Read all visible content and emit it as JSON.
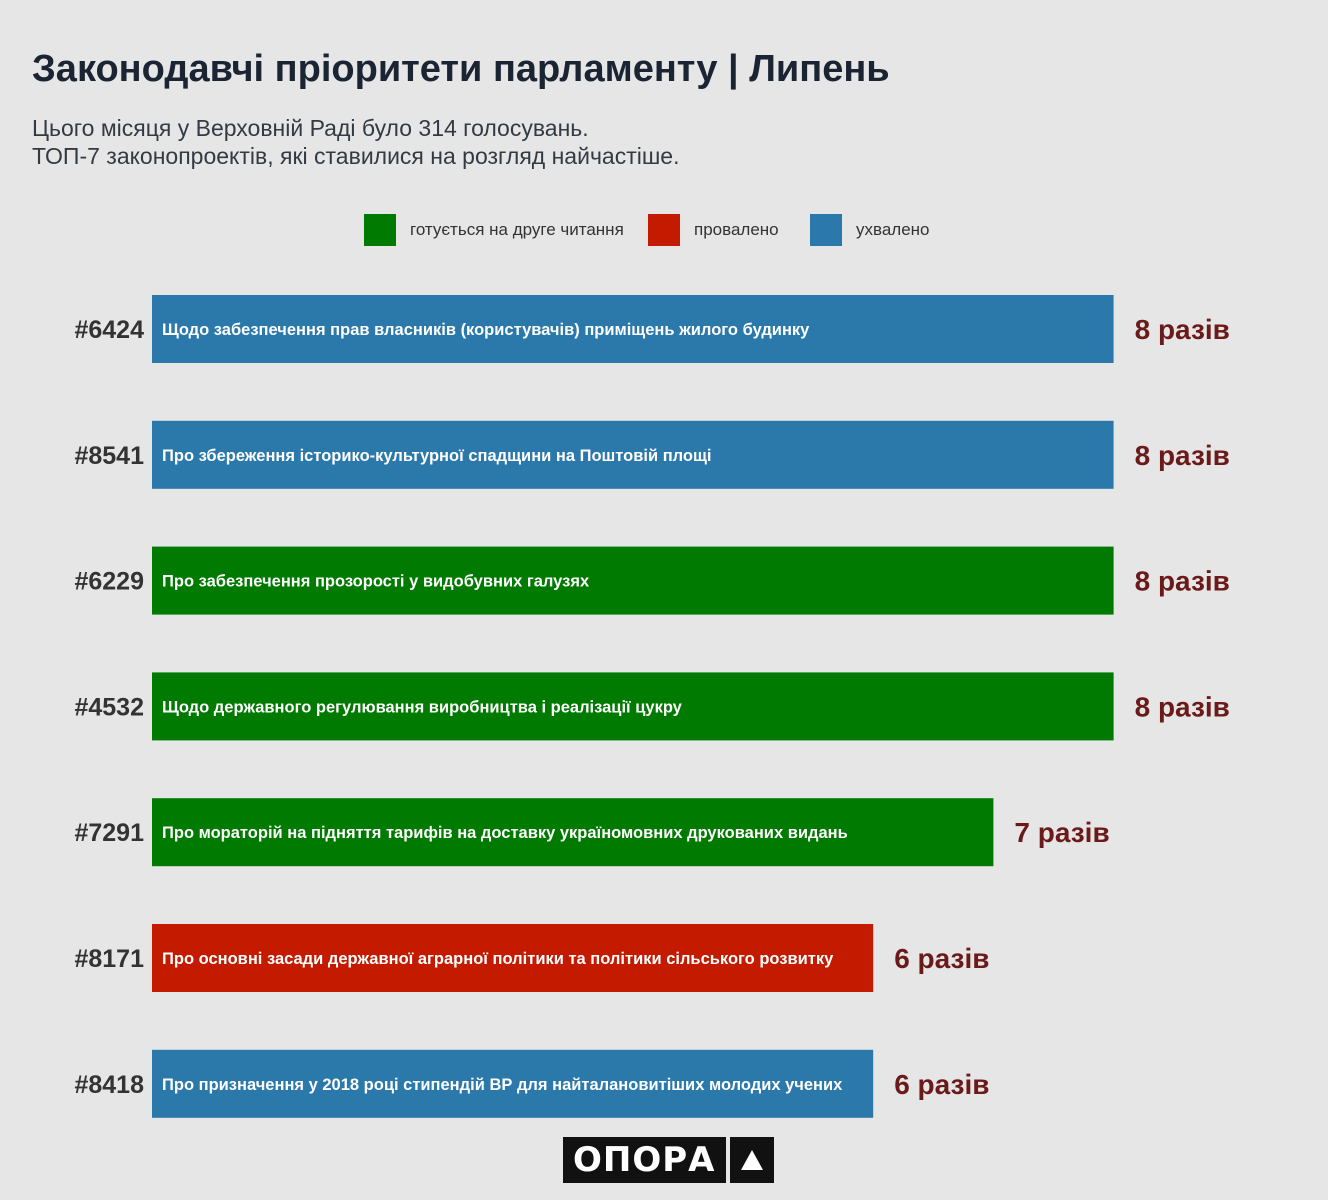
{
  "title": "Законодавчі пріоритети парламенту | Липень",
  "subtitle_line1": "Цього місяця у Верховній Раді було 314 голосувань.",
  "subtitle_line2": "ТОП-7 законопроектів, які ставилися на розгляд найчастіше.",
  "legend": [
    {
      "label": "готується на друге читання",
      "color": "#007a00"
    },
    {
      "label": "провалено",
      "color": "#c31a00"
    },
    {
      "label": "ухвалено",
      "color": "#2b78ab"
    }
  ],
  "colors": {
    "second_reading": "#007a00",
    "failed": "#c31a00",
    "approved": "#2b78ab",
    "value_text": "#6b1a1a",
    "id_text": "#333333"
  },
  "logo_text": "ОПОРА",
  "chart_data": {
    "type": "bar",
    "orientation": "horizontal",
    "value_suffix": "разів",
    "xlim": [
      0,
      8
    ],
    "bars": [
      {
        "id": "#6424",
        "label": "Щодо забезпечення прав власників (користувачів) приміщень жилого будинку",
        "value": 8,
        "value_label": "8 разів",
        "status": "ухвалено"
      },
      {
        "id": "#8541",
        "label": "Про збереження історико-культурної спадщини на Поштовій площі",
        "value": 8,
        "value_label": "8 разів",
        "status": "ухвалено"
      },
      {
        "id": "#6229",
        "label": "Про забезпечення прозорості у видобувних галузях",
        "value": 8,
        "value_label": "8 разів",
        "status": "готується на друге читання"
      },
      {
        "id": "#4532",
        "label": "Щодо державного регулювання виробництва і реалізації цукру",
        "value": 8,
        "value_label": "8 разів",
        "status": "готується на друге читання"
      },
      {
        "id": "#7291",
        "label": "Про мораторій на підняття тарифів на доставку україномовних друкованих видань",
        "value": 7,
        "value_label": "7 разів",
        "status": "готується на друге читання"
      },
      {
        "id": "#8171",
        "label": "Про основні засади державної аграрної політики та політики сільського розвитку",
        "value": 6,
        "value_label": "6 разів",
        "status": "провалено"
      },
      {
        "id": "#8418",
        "label": "Про призначення у 2018 році стипендій ВР для найталановитіших молодих учених",
        "value": 6,
        "value_label": "6 разів",
        "status": "ухвалено"
      }
    ]
  }
}
